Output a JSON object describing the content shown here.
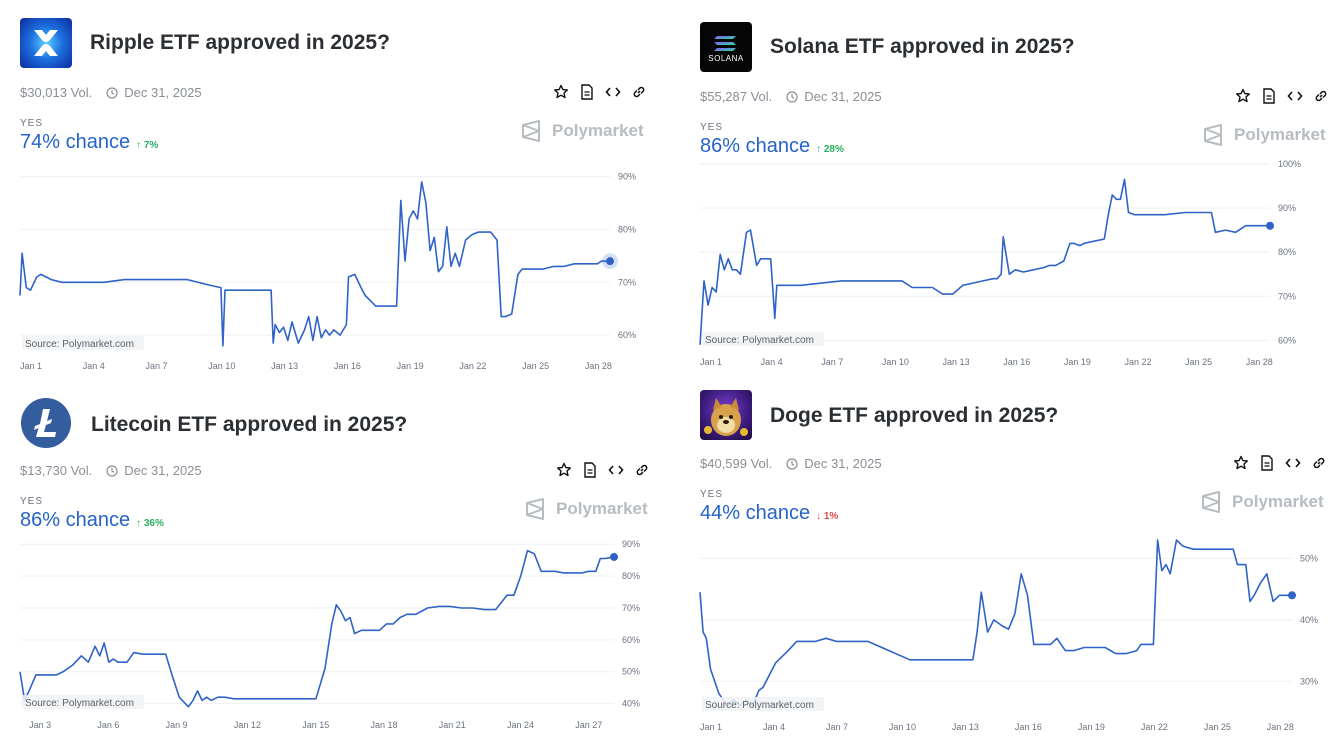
{
  "cards": [
    {
      "title": "Ripple ETF approved in 2025?",
      "volume": "$30,013 Vol.",
      "end_date": "Dec 31, 2025",
      "outcome": "YES",
      "chance": "74% chance",
      "delta": "↑ 7%",
      "delta_dir": "up",
      "brand": "Polymarket",
      "source": "Source: Polymarket.com",
      "icon": "xrp-logo"
    },
    {
      "title": "Solana ETF approved in 2025?",
      "volume": "$55,287 Vol.",
      "end_date": "Dec 31, 2025",
      "outcome": "YES",
      "chance": "86% chance",
      "delta": "↑ 28%",
      "delta_dir": "up",
      "brand": "Polymarket",
      "source": "Source: Polymarket.com",
      "icon": "solana-logo"
    },
    {
      "title": "Litecoin ETF approved in 2025?",
      "volume": "$13,730 Vol.",
      "end_date": "Dec 31, 2025",
      "outcome": "YES",
      "chance": "86% chance",
      "delta": "↑ 36%",
      "delta_dir": "up",
      "brand": "Polymarket",
      "source": "Source: Polymarket.com",
      "icon": "litecoin-logo"
    },
    {
      "title": "Doge ETF approved in 2025?",
      "volume": "$40,599 Vol.",
      "end_date": "Dec 31, 2025",
      "outcome": "YES",
      "chance": "44% chance",
      "delta": "↓ 1%",
      "delta_dir": "down",
      "brand": "Polymarket",
      "source": "Source: Polymarket.com",
      "icon": "doge-logo"
    }
  ],
  "colors": {
    "line": "#2f63c8",
    "accent": "#2563c9",
    "up": "#27ae60",
    "down": "#e24a4a"
  },
  "chart_data": [
    {
      "type": "line",
      "ylim": [
        57,
        92
      ],
      "yticks": [
        {
          "v": 90,
          "label": "90%"
        },
        {
          "v": 80,
          "label": "80%"
        },
        {
          "v": 70,
          "label": "70%"
        },
        {
          "v": 60,
          "label": "60%"
        }
      ],
      "xlim": [
        1,
        29.2
      ],
      "xticks": [
        {
          "v": 1,
          "label": "Jan 1"
        },
        {
          "v": 4,
          "label": "Jan 4"
        },
        {
          "v": 7,
          "label": "Jan 7"
        },
        {
          "v": 10,
          "label": "Jan 10"
        },
        {
          "v": 13,
          "label": "Jan 13"
        },
        {
          "v": 16,
          "label": "Jan 16"
        },
        {
          "v": 19,
          "label": "Jan 19"
        },
        {
          "v": 22,
          "label": "Jan 22"
        },
        {
          "v": 25,
          "label": "Jan 25"
        },
        {
          "v": 28,
          "label": "Jan 28"
        }
      ],
      "series": [
        {
          "x": [
            1,
            1.1,
            1.3,
            1.5,
            1.8,
            2,
            2.5,
            3,
            4,
            5,
            6,
            7,
            8,
            8.5,
            9,
            10,
            10.6,
            10.7,
            10.8,
            11,
            11.5,
            12,
            13,
            13.1,
            13.2,
            13.4,
            13.6,
            13.8,
            14,
            14.3,
            14.6,
            14.8,
            15,
            15.2,
            15.4,
            15.6,
            15.8,
            16,
            16.3,
            16.6,
            16.7,
            17,
            17.3,
            17.5,
            18,
            18.5,
            19,
            19.2,
            19.4,
            19.6,
            19.8,
            20,
            20.2,
            20.4,
            20.6,
            20.8,
            21,
            21.2,
            21.4,
            21.6,
            21.8,
            22,
            22.3,
            22.6,
            22.9,
            23.2,
            23.5,
            23.8,
            24,
            24.2,
            24.5,
            24.8,
            25,
            25.3,
            25.6,
            26,
            26.5,
            27,
            27.5,
            28,
            28.3,
            28.6,
            28.8,
            29.2
          ],
          "y": [
            67.5,
            75.5,
            69,
            68.5,
            71,
            71.5,
            70.5,
            70,
            70,
            70,
            70.5,
            70.5,
            70.5,
            70.5,
            70.5,
            69.5,
            69,
            58,
            68.5,
            68.5,
            68.5,
            68.5,
            68.5,
            58.5,
            62,
            60.5,
            61.5,
            59,
            62.5,
            58.5,
            61,
            63.5,
            59,
            63.5,
            59.5,
            61,
            60,
            61,
            60,
            62,
            71,
            71.5,
            69,
            67.5,
            65.5,
            65.5,
            65.5,
            85.5,
            74,
            82,
            83.5,
            82,
            89,
            85,
            76,
            78.5,
            72,
            73,
            80.5,
            73,
            75.5,
            73,
            78,
            79,
            79.5,
            79.5,
            79.5,
            78,
            63.5,
            63.5,
            64,
            71.5,
            72.5,
            72.5,
            72.5,
            72.5,
            73,
            73,
            73.5,
            73.5,
            73.5,
            73.5,
            74,
            74
          ]
        }
      ]
    },
    {
      "type": "line",
      "ylim": [
        58.5,
        100
      ],
      "yticks": [
        {
          "v": 100,
          "label": "100%"
        },
        {
          "v": 90,
          "label": "90%"
        },
        {
          "v": 80,
          "label": "80%"
        },
        {
          "v": 70,
          "label": "70%"
        },
        {
          "v": 60,
          "label": "60%"
        }
      ],
      "xlim": [
        1,
        29.2
      ],
      "xticks": [
        {
          "v": 1,
          "label": "Jan 1"
        },
        {
          "v": 4,
          "label": "Jan 4"
        },
        {
          "v": 7,
          "label": "Jan 7"
        },
        {
          "v": 10,
          "label": "Jan 10"
        },
        {
          "v": 13,
          "label": "Jan 13"
        },
        {
          "v": 16,
          "label": "Jan 16"
        },
        {
          "v": 19,
          "label": "Jan 19"
        },
        {
          "v": 22,
          "label": "Jan 22"
        },
        {
          "v": 25,
          "label": "Jan 25"
        },
        {
          "v": 28,
          "label": "Jan 28"
        }
      ],
      "series": [
        {
          "x": [
            1,
            1.2,
            1.4,
            1.6,
            1.8,
            2,
            2.2,
            2.4,
            2.6,
            2.8,
            3,
            3.3,
            3.5,
            3.8,
            4,
            4.3,
            4.5,
            4.7,
            4.8,
            5,
            6,
            7,
            8,
            9,
            10,
            11,
            11.5,
            12,
            12.5,
            13,
            13.5,
            14,
            14.5,
            15,
            15.5,
            15.7,
            15.9,
            16,
            16.3,
            16.6,
            17,
            17.5,
            18,
            18.3,
            18.6,
            19,
            19.3,
            19.5,
            19.8,
            20,
            20.5,
            21,
            21.2,
            21.4,
            21.6,
            21.8,
            22,
            22.2,
            22.5,
            23,
            24,
            25,
            26,
            26.3,
            26.5,
            27,
            27.5,
            28,
            28.3,
            28.6,
            29.2
          ],
          "y": [
            59,
            73.5,
            68,
            72,
            71,
            79.5,
            76,
            78.5,
            76,
            76,
            75,
            84.5,
            85,
            77,
            78.5,
            78.5,
            78.5,
            65,
            72.5,
            72.5,
            72.5,
            73,
            73.5,
            73.5,
            73.5,
            73.5,
            72,
            72,
            72,
            70.5,
            70.5,
            72.5,
            73,
            73.5,
            74,
            74,
            75,
            83.5,
            75,
            76,
            75.5,
            76,
            76.5,
            77,
            77,
            78,
            82,
            82,
            81.5,
            82,
            82.5,
            83,
            88.5,
            93,
            92,
            92,
            96.5,
            89,
            88.5,
            88.5,
            88.5,
            89,
            89,
            89,
            84.5,
            85,
            84.5,
            86,
            86,
            86,
            86
          ]
        }
      ]
    },
    {
      "type": "line",
      "ylim": [
        38,
        91
      ],
      "yticks": [
        {
          "v": 90,
          "label": "90%"
        },
        {
          "v": 80,
          "label": "80%"
        },
        {
          "v": 70,
          "label": "70%"
        },
        {
          "v": 60,
          "label": "60%"
        },
        {
          "v": 50,
          "label": "50%"
        },
        {
          "v": 40,
          "label": "40%"
        }
      ],
      "xlim": [
        2.6,
        28.7
      ],
      "xticks": [
        {
          "v": 3,
          "label": "Jan 3"
        },
        {
          "v": 6,
          "label": "Jan 6"
        },
        {
          "v": 9,
          "label": "Jan 9"
        },
        {
          "v": 12,
          "label": "Jan 12"
        },
        {
          "v": 15,
          "label": "Jan 15"
        },
        {
          "v": 18,
          "label": "Jan 18"
        },
        {
          "v": 21,
          "label": "Jan 21"
        },
        {
          "v": 24,
          "label": "Jan 24"
        },
        {
          "v": 27,
          "label": "Jan 27"
        }
      ],
      "series": [
        {
          "x": [
            2.6,
            2.8,
            3,
            3.3,
            3.6,
            3.9,
            4.2,
            4.5,
            4.9,
            5.3,
            5.6,
            5.9,
            6.1,
            6.3,
            6.5,
            6.7,
            6.9,
            7.1,
            7.3,
            7.6,
            8,
            8.5,
            9,
            9.3,
            9.6,
            10,
            10.2,
            10.4,
            10.6,
            10.8,
            11,
            11.3,
            11.6,
            12,
            12.5,
            13,
            14,
            15,
            15.3,
            15.6,
            16,
            16.3,
            16.5,
            16.7,
            16.9,
            17.1,
            17.3,
            17.6,
            18,
            18.4,
            18.7,
            19,
            19.3,
            19.6,
            20,
            20.5,
            21,
            21.5,
            22,
            22.5,
            23,
            23.5,
            24,
            24.3,
            24.6,
            24.9,
            25.2,
            25.5,
            25.8,
            26.1,
            26.5,
            27,
            27.3,
            27.6,
            27.9,
            28.1,
            28.3,
            28.7
          ],
          "y": [
            50,
            41,
            44,
            49,
            49,
            49,
            49,
            50,
            52,
            55,
            53,
            58,
            55,
            59,
            53,
            54,
            53,
            53,
            53,
            56,
            55.5,
            55.5,
            55.5,
            48.5,
            42,
            39,
            41,
            44,
            41,
            42,
            41,
            42,
            42,
            41.5,
            41.5,
            41.5,
            41.5,
            41.5,
            41.5,
            41.5,
            51,
            65,
            71,
            69,
            66,
            67,
            62,
            63,
            63,
            63,
            65,
            65,
            67,
            68,
            68,
            70,
            70.5,
            70.5,
            70,
            70,
            69.5,
            69.5,
            74,
            74,
            80,
            88,
            87,
            81.5,
            81.5,
            81.5,
            81,
            81,
            81,
            81.5,
            81.5,
            85.5,
            85.5,
            86
          ]
        }
      ]
    },
    {
      "type": "line",
      "ylim": [
        25,
        53
      ],
      "yticks": [
        {
          "v": 50,
          "label": "50%"
        },
        {
          "v": 40,
          "label": "40%"
        },
        {
          "v": 30,
          "label": "30%"
        }
      ],
      "xlim": [
        1,
        29.2
      ],
      "xticks": [
        {
          "v": 1,
          "label": "Jan 1"
        },
        {
          "v": 4,
          "label": "Jan 4"
        },
        {
          "v": 7,
          "label": "Jan 7"
        },
        {
          "v": 10,
          "label": "Jan 10"
        },
        {
          "v": 13,
          "label": "Jan 13"
        },
        {
          "v": 16,
          "label": "Jan 16"
        },
        {
          "v": 19,
          "label": "Jan 19"
        },
        {
          "v": 22,
          "label": "Jan 22"
        },
        {
          "v": 25,
          "label": "Jan 25"
        },
        {
          "v": 28,
          "label": "Jan 28"
        }
      ],
      "series": [
        {
          "x": [
            1,
            1.15,
            1.3,
            1.5,
            1.7,
            1.9,
            2.1,
            2.3,
            2.6,
            2.9,
            3.2,
            3.5,
            3.8,
            4,
            4.3,
            4.6,
            4.9,
            5.2,
            5.6,
            6,
            6.5,
            7,
            7.5,
            8,
            9,
            10,
            11,
            12,
            13,
            13.5,
            14,
            14.2,
            14.4,
            14.7,
            15,
            15.4,
            15.7,
            16,
            16.3,
            16.6,
            16.9,
            17.3,
            17.7,
            18,
            18.4,
            18.8,
            19.3,
            19.8,
            20.3,
            20.8,
            21.3,
            21.8,
            22,
            22.2,
            22.4,
            22.6,
            22.8,
            23,
            23.2,
            23.4,
            23.7,
            24,
            24.5,
            25,
            25.5,
            26,
            26.4,
            26.6,
            26.8,
            27,
            27.2,
            27.4,
            27.7,
            28,
            28.3,
            28.6,
            29.2
          ],
          "y": [
            44.5,
            38,
            37,
            32,
            30,
            28,
            27,
            26,
            27,
            26,
            27,
            26,
            28.5,
            29,
            31,
            33,
            34,
            35,
            36.5,
            36.5,
            36.5,
            37,
            36.5,
            36.5,
            36.5,
            35,
            33.5,
            33.5,
            33.5,
            33.5,
            33.5,
            38,
            44.5,
            38,
            40,
            39,
            38.5,
            41,
            47.5,
            44,
            36,
            36,
            36,
            37,
            35,
            35,
            35.5,
            35.5,
            35.5,
            34.5,
            34.5,
            35,
            36,
            36,
            36,
            36,
            53,
            48,
            49,
            47.5,
            53,
            52,
            51.5,
            51.5,
            51.5,
            51.5,
            51.5,
            49,
            49,
            49,
            43,
            44,
            46,
            47.5,
            43,
            44,
            44
          ]
        }
      ]
    }
  ]
}
